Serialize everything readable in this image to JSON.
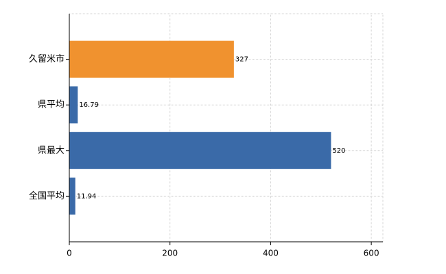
{
  "chart_data": {
    "type": "hbar",
    "categories": [
      "久留米市",
      "県平均",
      "県最大",
      "全国平均"
    ],
    "values": [
      327,
      16.79,
      520,
      11.94
    ],
    "colors": [
      "#f0922f",
      "#3a6aa8",
      "#3a6aa8",
      "#3a6aa8"
    ],
    "xlim": [
      0,
      623
    ],
    "xticks": [
      0,
      200,
      400,
      600
    ],
    "grid": true
  }
}
